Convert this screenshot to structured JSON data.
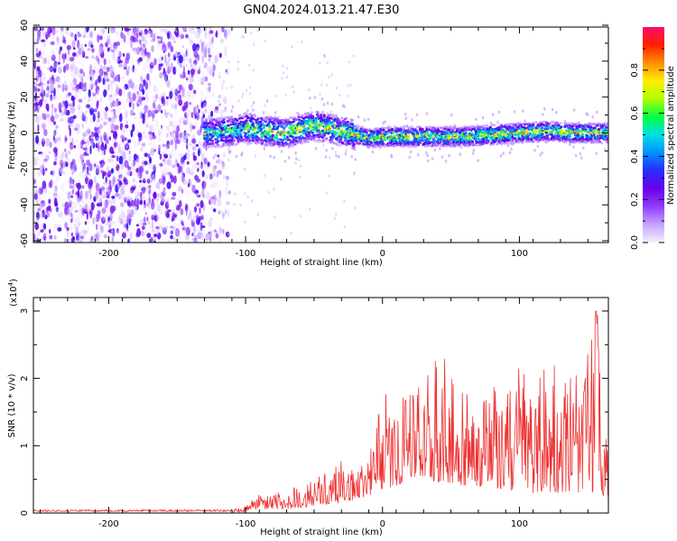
{
  "figure_title": "GN04.2024.013.21.47.E30",
  "chart_data": [
    {
      "type": "heatmap",
      "panel": "spectrogram",
      "xlabel": "Height of straight line (km)",
      "ylabel": "Frequency (Hz)",
      "xlim": [
        -255,
        165
      ],
      "ylim": [
        -61,
        59
      ],
      "xticks": [
        -200,
        -100,
        0,
        100
      ],
      "yticks": [
        -60,
        -40,
        -20,
        0,
        20,
        40,
        60
      ],
      "colorbar": {
        "label": "Normalized spectral amplitude",
        "range": [
          0,
          1
        ],
        "ticks": [
          0.0,
          0.2,
          0.4,
          0.6,
          0.8
        ],
        "colormap": [
          "#f5f0ff",
          "#c7a3ff",
          "#8f3dff",
          "#6a00e8",
          "#2a2aff",
          "#0090ff",
          "#00e0e0",
          "#00ff44",
          "#b0ff00",
          "#ffee00",
          "#ff9000",
          "#ff2000",
          "#ff0a6e"
        ]
      },
      "signal_track": {
        "description_points_x_km": [
          -130,
          -110,
          -100,
          -85,
          -70,
          -60,
          -50,
          -40,
          -30,
          -20,
          -10,
          0,
          20,
          40,
          60,
          80,
          100,
          120,
          140,
          160
        ],
        "center_frequency_hz": [
          0,
          1,
          3,
          1,
          0,
          2,
          4,
          3,
          1,
          -1,
          -3,
          -2,
          -2,
          -2,
          -2,
          -1,
          0,
          1,
          0,
          0
        ]
      },
      "noise_region_x_km": [
        -255,
        -120
      ]
    },
    {
      "type": "line",
      "panel": "snr",
      "xlabel": "Height of straight line (km)",
      "ylabel": "SNR (10 * v/v)",
      "scale_label": "(x10",
      "scale_exponent": "4",
      "scale_suffix": ")",
      "xlim": [
        -255,
        165
      ],
      "ylim": [
        0,
        3.2
      ],
      "xticks": [
        -200,
        -100,
        0,
        100
      ],
      "yticks": [
        0,
        1,
        2,
        3
      ],
      "color": "#ee3333",
      "envelope": {
        "x": [
          -255,
          -200,
          -150,
          -110,
          -100,
          -90,
          -70,
          -50,
          -30,
          -20,
          -10,
          0,
          10,
          20,
          30,
          40,
          50,
          60,
          70,
          80,
          90,
          100,
          110,
          120,
          130,
          140,
          150,
          157,
          160,
          165
        ],
        "peak": [
          0.03,
          0.04,
          0.05,
          0.06,
          0.1,
          0.3,
          0.35,
          0.5,
          0.8,
          0.7,
          0.9,
          1.8,
          1.7,
          2.2,
          2.1,
          2.5,
          2.2,
          2.0,
          1.8,
          1.9,
          2.0,
          2.6,
          2.0,
          2.6,
          2.0,
          2.1,
          2.4,
          3.15,
          1.3,
          1.0
        ],
        "floor": [
          0.0,
          0.01,
          0.01,
          0.01,
          0.02,
          0.04,
          0.06,
          0.1,
          0.15,
          0.2,
          0.25,
          0.35,
          0.4,
          0.5,
          0.5,
          0.45,
          0.45,
          0.4,
          0.4,
          0.35,
          0.35,
          0.3,
          0.3,
          0.3,
          0.3,
          0.3,
          0.3,
          0.3,
          0.2,
          0.2
        ]
      }
    }
  ]
}
